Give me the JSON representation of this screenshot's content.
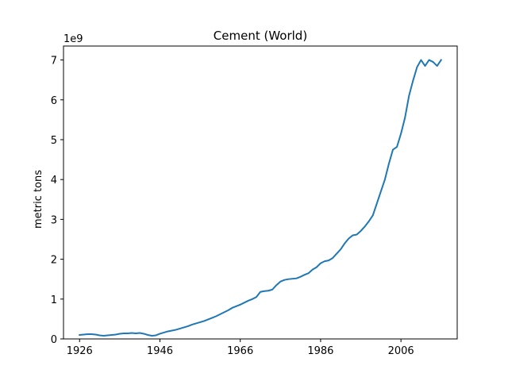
{
  "chart_data": {
    "type": "line",
    "title": "Cement (World)",
    "xlabel": "",
    "ylabel": "metric tons",
    "y_offset_text": "1e9",
    "xlim": [
      1922,
      2020
    ],
    "ylim": [
      0,
      7.35
    ],
    "x_ticks": [
      1926,
      1946,
      1966,
      1986,
      2006
    ],
    "y_ticks": [
      0,
      1,
      2,
      3,
      4,
      5,
      6,
      7
    ],
    "grid": false,
    "line_color": "#1f77b4",
    "series": [
      {
        "x": [
          1926,
          1927,
          1928,
          1929,
          1930,
          1931,
          1932,
          1933,
          1934,
          1935,
          1936,
          1937,
          1938,
          1939,
          1940,
          1941,
          1942,
          1943,
          1944,
          1945,
          1946,
          1947,
          1948,
          1949,
          1950,
          1951,
          1952,
          1953,
          1954,
          1955,
          1956,
          1957,
          1958,
          1959,
          1960,
          1961,
          1962,
          1963,
          1964,
          1965,
          1966,
          1967,
          1968,
          1969,
          1970,
          1971,
          1972,
          1973,
          1974,
          1975,
          1976,
          1977,
          1978,
          1979,
          1980,
          1981,
          1982,
          1983,
          1984,
          1985,
          1986,
          1987,
          1988,
          1989,
          1990,
          1991,
          1992,
          1993,
          1994,
          1995,
          1996,
          1997,
          1998,
          1999,
          2000,
          2001,
          2002,
          2003,
          2004,
          2005,
          2006,
          2007,
          2008,
          2009,
          2010,
          2011,
          2012,
          2013,
          2014,
          2015,
          2016,
          2017,
          2018
        ],
        "y": [
          0.1,
          0.11,
          0.12,
          0.12,
          0.11,
          0.09,
          0.08,
          0.09,
          0.1,
          0.11,
          0.13,
          0.14,
          0.14,
          0.15,
          0.14,
          0.15,
          0.13,
          0.1,
          0.08,
          0.09,
          0.13,
          0.16,
          0.19,
          0.21,
          0.23,
          0.26,
          0.29,
          0.32,
          0.36,
          0.39,
          0.42,
          0.45,
          0.49,
          0.53,
          0.57,
          0.62,
          0.67,
          0.72,
          0.78,
          0.82,
          0.86,
          0.91,
          0.96,
          1.0,
          1.05,
          1.18,
          1.2,
          1.21,
          1.24,
          1.35,
          1.44,
          1.48,
          1.5,
          1.51,
          1.52,
          1.56,
          1.61,
          1.65,
          1.74,
          1.8,
          1.9,
          1.95,
          1.97,
          2.03,
          2.14,
          2.25,
          2.4,
          2.52,
          2.6,
          2.62,
          2.71,
          2.82,
          2.95,
          3.1,
          3.4,
          3.7,
          4.0,
          4.4,
          4.75,
          4.82,
          5.15,
          5.55,
          6.1,
          6.48,
          6.82,
          7.0,
          6.85,
          7.0,
          6.95,
          6.85,
          7.0,
          null,
          null
        ]
      }
    ]
  }
}
